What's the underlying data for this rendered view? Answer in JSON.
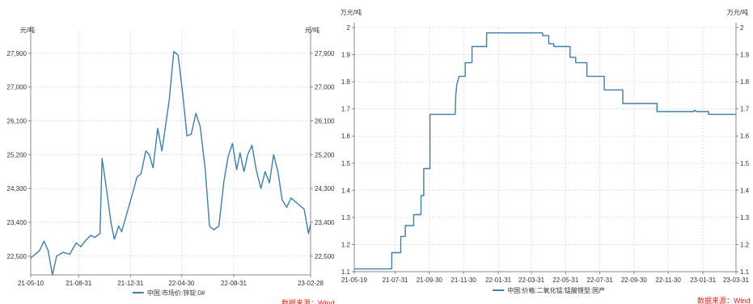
{
  "chart_data": [
    {
      "type": "line",
      "unit_left": "元/吨",
      "unit_right": "元/吨",
      "source": "数据来源：Wind",
      "ylim": [
        22000,
        28500
      ],
      "yticks": [
        22500,
        23400,
        24300,
        25200,
        26100,
        27000,
        27900
      ],
      "ytick_labels": [
        "22,500",
        "23,400",
        "24,300",
        "25,200",
        "26,100",
        "27,000",
        "27,900"
      ],
      "x_range": [
        "2021-05-10",
        "2023-02-28"
      ],
      "xticks": [
        "2021-05-10",
        "2021-08-31",
        "2021-12-31",
        "2022-04-30",
        "2022-08-31",
        "2023-02-28"
      ],
      "xtick_labels": [
        "21-05-10",
        "21-08-31",
        "21-12-31",
        "22-04-30",
        "22-08-31",
        "23-02-28"
      ],
      "grid": true,
      "legend_position": "bottom",
      "series": [
        {
          "name": "中国:市场价:锌锭:0#",
          "color": "#3c7fa8",
          "x": [
            "2021-05-10",
            "2021-05-31",
            "2021-06-10",
            "2021-06-20",
            "2021-06-30",
            "2021-07-10",
            "2021-07-25",
            "2021-08-10",
            "2021-08-25",
            "2021-09-05",
            "2021-09-15",
            "2021-09-28",
            "2021-10-08",
            "2021-10-20",
            "2021-10-25",
            "2021-11-03",
            "2021-11-15",
            "2021-11-23",
            "2021-12-03",
            "2021-12-10",
            "2022-01-03",
            "2022-01-15",
            "2022-01-25",
            "2022-02-05",
            "2022-02-13",
            "2022-02-22",
            "2022-03-05",
            "2022-03-15",
            "2022-04-01",
            "2022-04-12",
            "2022-04-22",
            "2022-05-03",
            "2022-05-13",
            "2022-05-23",
            "2022-06-03",
            "2022-06-13",
            "2022-06-25",
            "2022-07-05",
            "2022-07-15",
            "2022-07-27",
            "2022-08-08",
            "2022-08-18",
            "2022-08-28",
            "2022-09-07",
            "2022-09-15",
            "2022-09-24",
            "2022-10-03",
            "2022-10-13",
            "2022-10-23",
            "2022-11-03",
            "2022-11-13",
            "2022-11-23",
            "2022-12-03",
            "2022-12-13",
            "2022-12-23",
            "2023-01-03",
            "2023-01-13",
            "2023-01-23",
            "2023-02-13",
            "2023-02-23",
            "2023-02-28"
          ],
          "values": [
            22450,
            22650,
            22900,
            22650,
            22000,
            22500,
            22600,
            22550,
            22850,
            22750,
            22900,
            23050,
            23000,
            23100,
            25100,
            24400,
            23400,
            22950,
            23300,
            23150,
            24100,
            24600,
            24700,
            25300,
            25200,
            24850,
            25900,
            25300,
            26650,
            27950,
            27850,
            26800,
            25700,
            25750,
            26300,
            25950,
            24800,
            23300,
            23200,
            23300,
            24500,
            25150,
            25500,
            24800,
            25250,
            24750,
            25200,
            25450,
            24800,
            24300,
            24750,
            24450,
            25200,
            24750,
            24000,
            23800,
            24050,
            23950,
            23750,
            23100,
            23350
          ]
        }
      ]
    },
    {
      "type": "line",
      "unit_left": "万元/吨",
      "unit_right": "万元/吨",
      "source": "数据来源：Wind",
      "ylim": [
        1.1,
        2.0
      ],
      "yticks": [
        1.1,
        1.2,
        1.3,
        1.4,
        1.5,
        1.6,
        1.7,
        1.8,
        1.9,
        2.0
      ],
      "ytick_labels": [
        "1.1",
        "1.2",
        "1.3",
        "1.4",
        "1.5",
        "1.6",
        "1.7",
        "1.8",
        "1.9",
        "2"
      ],
      "x_range": [
        "2021-05-19",
        "2023-03-31"
      ],
      "xticks": [
        "2021-05-19",
        "2021-07-31",
        "2021-09-30",
        "2021-11-30",
        "2022-01-31",
        "2022-03-31",
        "2022-05-31",
        "2022-07-31",
        "2022-09-30",
        "2022-11-30",
        "2023-01-31",
        "2023-03-31"
      ],
      "xtick_labels": [
        "21-05-19",
        "21-07-31",
        "21-09-30",
        "21-11-30",
        "22-01-31",
        "22-03-31",
        "22-05-31",
        "22-07-31",
        "22-09-30",
        "22-11-30",
        "23-01-31",
        "23-03-31"
      ],
      "grid": true,
      "legend_position": "bottom",
      "series": [
        {
          "name": "中国:价格:二氧化锰:锰酸锂型:国产",
          "color": "#3c7fa8",
          "x": [
            "2021-05-19",
            "2021-07-25",
            "2021-07-25",
            "2021-08-10",
            "2021-08-10",
            "2021-08-18",
            "2021-08-18",
            "2021-09-02",
            "2021-09-02",
            "2021-09-15",
            "2021-09-15",
            "2021-09-20",
            "2021-09-20",
            "2021-10-01",
            "2021-10-01",
            "2021-10-10",
            "2021-10-10",
            "2021-10-20",
            "2021-10-20",
            "2021-11-15",
            "2021-11-16",
            "2021-11-18",
            "2021-11-22",
            "2021-11-22",
            "2021-12-03",
            "2021-12-03",
            "2021-12-15",
            "2021-12-15",
            "2022-01-10",
            "2022-01-10",
            "2022-04-20",
            "2022-04-20",
            "2022-05-01",
            "2022-05-01",
            "2022-05-10",
            "2022-05-10",
            "2022-06-08",
            "2022-06-08",
            "2022-06-18",
            "2022-06-18",
            "2022-07-08",
            "2022-07-08",
            "2022-08-08",
            "2022-08-08",
            "2022-09-10",
            "2022-09-10",
            "2022-11-10",
            "2022-11-10",
            "2023-01-15",
            "2023-01-16",
            "2023-01-20",
            "2023-01-20",
            "2023-02-10",
            "2023-02-10",
            "2023-03-31"
          ],
          "values": [
            1.11,
            1.11,
            1.17,
            1.17,
            1.23,
            1.23,
            1.27,
            1.27,
            1.31,
            1.31,
            1.38,
            1.38,
            1.48,
            1.48,
            1.68,
            1.68,
            1.68,
            1.68,
            1.68,
            1.68,
            1.75,
            1.79,
            1.82,
            1.82,
            1.82,
            1.87,
            1.87,
            1.93,
            1.93,
            1.98,
            1.98,
            1.97,
            1.97,
            1.94,
            1.94,
            1.93,
            1.93,
            1.89,
            1.89,
            1.87,
            1.87,
            1.82,
            1.82,
            1.77,
            1.77,
            1.72,
            1.72,
            1.69,
            1.69,
            1.695,
            1.69,
            1.69,
            1.69,
            1.68,
            1.68
          ]
        }
      ]
    }
  ]
}
